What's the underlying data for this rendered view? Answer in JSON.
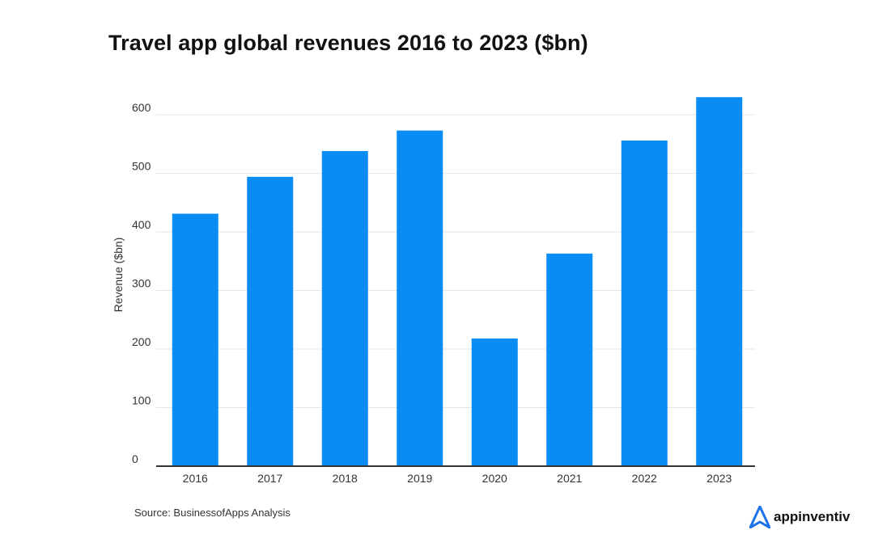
{
  "title": "Travel app global revenues 2016 to 2023 ($bn)",
  "source": "Source: BusinessofApps Analysis",
  "brand": {
    "name": "appinventiv",
    "logo_icon": "appinventiv-logo-icon",
    "color": "#1a73e8"
  },
  "colors": {
    "bar": "#0a8cf5",
    "grid": "#e6e6e6",
    "axis": "#333333"
  },
  "chart_data": {
    "type": "bar",
    "title": "Travel app global revenues 2016 to 2023 ($bn)",
    "xlabel": "",
    "ylabel": "Revenue ($bn)",
    "categories": [
      "2016",
      "2017",
      "2018",
      "2019",
      "2020",
      "2021",
      "2022",
      "2023"
    ],
    "values": [
      431,
      494,
      538,
      573,
      218,
      363,
      556,
      630
    ],
    "ylim": [
      0,
      600
    ],
    "yticks": [
      0,
      100,
      200,
      300,
      400,
      500,
      600
    ],
    "grid": true,
    "legend": "none"
  }
}
